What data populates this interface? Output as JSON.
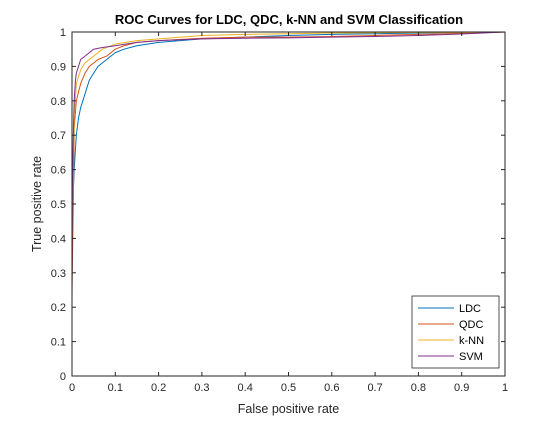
{
  "chart_data": {
    "type": "line",
    "title": "ROC Curves for LDC, QDC, k-NN and SVM Classification",
    "xlabel": "False positive rate",
    "ylabel": "True positive rate",
    "xlim": [
      0,
      1
    ],
    "ylim": [
      0,
      1
    ],
    "x_ticks": [
      0,
      0.1,
      0.2,
      0.3,
      0.4,
      0.5,
      0.6,
      0.7,
      0.8,
      0.9,
      1
    ],
    "y_ticks": [
      0,
      0.1,
      0.2,
      0.3,
      0.4,
      0.5,
      0.6,
      0.7,
      0.8,
      0.9,
      1
    ],
    "x_tick_labels": [
      "0",
      "0.1",
      "0.2",
      "0.3",
      "0.4",
      "0.5",
      "0.6",
      "0.7",
      "0.8",
      "0.9",
      "1"
    ],
    "y_tick_labels": [
      "0",
      "0.1",
      "0.2",
      "0.3",
      "0.4",
      "0.5",
      "0.6",
      "0.7",
      "0.8",
      "0.9",
      "1"
    ],
    "grid": false,
    "legend_position": "bottom-right",
    "series": [
      {
        "name": "LDC",
        "color": "#0072BD",
        "points": [
          [
            0,
            0
          ],
          [
            0,
            0.3
          ],
          [
            0.002,
            0.5
          ],
          [
            0.005,
            0.6
          ],
          [
            0.01,
            0.7
          ],
          [
            0.015,
            0.75
          ],
          [
            0.02,
            0.78
          ],
          [
            0.03,
            0.82
          ],
          [
            0.04,
            0.86
          ],
          [
            0.05,
            0.88
          ],
          [
            0.06,
            0.9
          ],
          [
            0.08,
            0.92
          ],
          [
            0.1,
            0.94
          ],
          [
            0.12,
            0.95
          ],
          [
            0.15,
            0.96
          ],
          [
            0.2,
            0.97
          ],
          [
            0.3,
            0.98
          ],
          [
            0.4,
            0.985
          ],
          [
            0.5,
            0.99
          ],
          [
            0.6,
            0.993
          ],
          [
            0.7,
            0.995
          ],
          [
            0.8,
            0.997
          ],
          [
            0.9,
            0.999
          ],
          [
            1,
            1
          ]
        ]
      },
      {
        "name": "QDC",
        "color": "#D95319",
        "points": [
          [
            0,
            0
          ],
          [
            0,
            0.25
          ],
          [
            0.003,
            0.5
          ],
          [
            0.005,
            0.72
          ],
          [
            0.01,
            0.8
          ],
          [
            0.02,
            0.85
          ],
          [
            0.03,
            0.88
          ],
          [
            0.04,
            0.9
          ],
          [
            0.05,
            0.91
          ],
          [
            0.06,
            0.92
          ],
          [
            0.08,
            0.93
          ],
          [
            0.1,
            0.95
          ],
          [
            0.12,
            0.96
          ],
          [
            0.15,
            0.97
          ],
          [
            0.2,
            0.975
          ],
          [
            0.3,
            0.982
          ],
          [
            0.4,
            0.985
          ],
          [
            0.5,
            0.985
          ],
          [
            0.6,
            0.987
          ],
          [
            0.7,
            0.99
          ],
          [
            0.8,
            0.993
          ],
          [
            0.9,
            0.996
          ],
          [
            1,
            1
          ]
        ]
      },
      {
        "name": "k-NN",
        "color": "#EDB120",
        "points": [
          [
            0,
            0
          ],
          [
            0,
            0.4
          ],
          [
            0.003,
            0.65
          ],
          [
            0.005,
            0.75
          ],
          [
            0.01,
            0.85
          ],
          [
            0.02,
            0.89
          ],
          [
            0.03,
            0.91
          ],
          [
            0.04,
            0.92
          ],
          [
            0.05,
            0.93
          ],
          [
            0.07,
            0.95
          ],
          [
            0.1,
            0.965
          ],
          [
            0.15,
            0.975
          ],
          [
            0.2,
            0.98
          ],
          [
            0.3,
            0.99
          ],
          [
            0.4,
            0.993
          ],
          [
            0.5,
            0.995
          ],
          [
            0.6,
            0.997
          ],
          [
            0.7,
            0.998
          ],
          [
            0.8,
            0.999
          ],
          [
            0.9,
            0.999
          ],
          [
            1,
            1
          ]
        ]
      },
      {
        "name": "SVM",
        "color": "#7E2F8E",
        "points": [
          [
            0,
            0
          ],
          [
            0,
            0.2
          ],
          [
            0.001,
            0.55
          ],
          [
            0.003,
            0.7
          ],
          [
            0.005,
            0.8
          ],
          [
            0.008,
            0.86
          ],
          [
            0.01,
            0.88
          ],
          [
            0.02,
            0.92
          ],
          [
            0.03,
            0.93
          ],
          [
            0.04,
            0.94
          ],
          [
            0.05,
            0.95
          ],
          [
            0.07,
            0.955
          ],
          [
            0.1,
            0.96
          ],
          [
            0.15,
            0.97
          ],
          [
            0.2,
            0.975
          ],
          [
            0.3,
            0.98
          ],
          [
            0.4,
            0.982
          ],
          [
            0.5,
            0.983
          ],
          [
            0.6,
            0.985
          ],
          [
            0.7,
            0.987
          ],
          [
            0.8,
            0.99
          ],
          [
            0.9,
            0.994
          ],
          [
            1,
            1
          ]
        ]
      }
    ]
  }
}
